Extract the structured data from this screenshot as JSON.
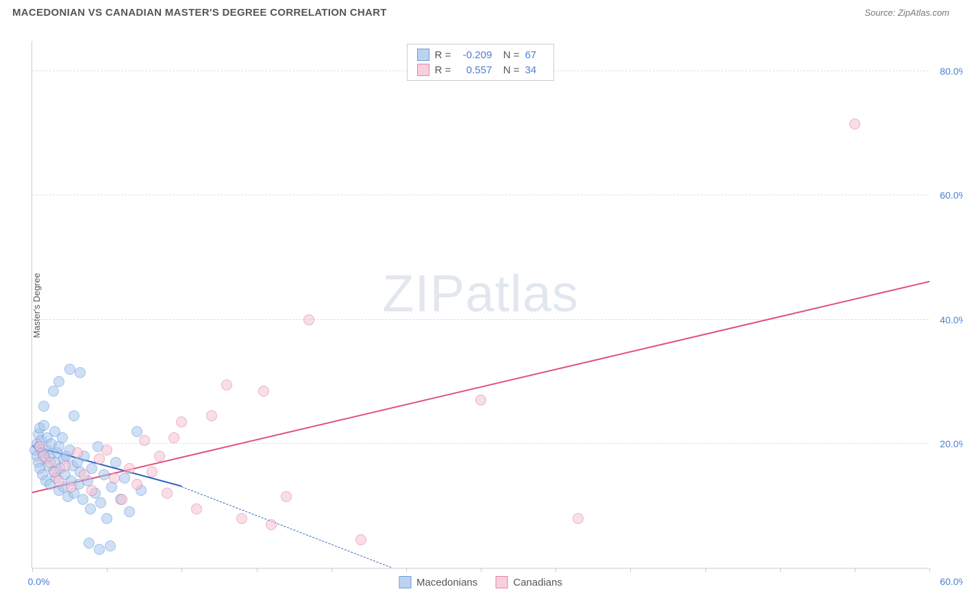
{
  "header": {
    "title": "MACEDONIAN VS CANADIAN MASTER'S DEGREE CORRELATION CHART",
    "source": "Source: ZipAtlas.com"
  },
  "chart": {
    "type": "scatter",
    "background_color": "#ffffff",
    "grid_color": "#dddddd",
    "axis_color": "#cccccc",
    "ylabel": "Master's Degree",
    "ylabel_fontsize": 13,
    "tick_label_color": "#4a7dd4",
    "tick_fontsize": 14,
    "xlim": [
      0,
      60
    ],
    "ylim": [
      0,
      85
    ],
    "xtick_positions": [
      0,
      5,
      10,
      15,
      20,
      25,
      30,
      35,
      40,
      45,
      50,
      55,
      60
    ],
    "xtick_labels": {
      "0": "0.0%",
      "60": "60.0%"
    },
    "ytick_positions": [
      20,
      40,
      60,
      80
    ],
    "ytick_labels": {
      "20": "20.0%",
      "40": "40.0%",
      "60": "60.0%",
      "80": "80.0%"
    },
    "watermark": {
      "text_bold": "ZIP",
      "text_light": "atlas"
    },
    "marker_radius": 8,
    "marker_stroke_width": 1,
    "series": [
      {
        "name": "Macedonians",
        "fill_color": "#a8c6ee",
        "stroke_color": "#5b8fd6",
        "fill_opacity": 0.55,
        "swatch_fill": "#bcd3f0",
        "swatch_stroke": "#6d9ad8",
        "R": "-0.209",
        "N": "67",
        "trend": {
          "x1": 0,
          "y1": 19.5,
          "x2": 10,
          "y2": 13.0,
          "dash_x1": 10,
          "dash_y1": 13.0,
          "dash_x2": 24,
          "dash_y2": 0,
          "color": "#2b62c2",
          "width": 2
        },
        "points": [
          [
            0.2,
            19.0
          ],
          [
            0.3,
            20.0
          ],
          [
            0.3,
            18.0
          ],
          [
            0.4,
            21.5
          ],
          [
            0.4,
            17.0
          ],
          [
            0.45,
            19.5
          ],
          [
            0.5,
            16.0
          ],
          [
            0.5,
            22.5
          ],
          [
            0.6,
            20.5
          ],
          [
            0.7,
            15.0
          ],
          [
            0.7,
            18.5
          ],
          [
            0.8,
            23.0
          ],
          [
            0.9,
            17.5
          ],
          [
            0.9,
            14.0
          ],
          [
            1.0,
            19.0
          ],
          [
            1.0,
            21.0
          ],
          [
            1.1,
            16.5
          ],
          [
            1.2,
            18.0
          ],
          [
            1.2,
            13.5
          ],
          [
            1.3,
            20.0
          ],
          [
            1.4,
            15.5
          ],
          [
            1.5,
            17.0
          ],
          [
            1.5,
            22.0
          ],
          [
            1.6,
            14.5
          ],
          [
            1.7,
            18.5
          ],
          [
            1.8,
            12.5
          ],
          [
            1.8,
            19.5
          ],
          [
            1.9,
            16.0
          ],
          [
            2.0,
            21.0
          ],
          [
            2.1,
            13.0
          ],
          [
            2.1,
            17.5
          ],
          [
            2.2,
            15.0
          ],
          [
            2.3,
            18.0
          ],
          [
            2.4,
            11.5
          ],
          [
            2.5,
            19.0
          ],
          [
            2.6,
            14.0
          ],
          [
            2.7,
            16.5
          ],
          [
            2.8,
            12.0
          ],
          [
            3.0,
            17.0
          ],
          [
            3.1,
            13.5
          ],
          [
            3.2,
            15.5
          ],
          [
            3.4,
            11.0
          ],
          [
            3.5,
            18.0
          ],
          [
            3.7,
            14.0
          ],
          [
            3.9,
            9.5
          ],
          [
            4.0,
            16.0
          ],
          [
            4.2,
            12.0
          ],
          [
            4.4,
            19.5
          ],
          [
            4.6,
            10.5
          ],
          [
            4.8,
            15.0
          ],
          [
            5.0,
            8.0
          ],
          [
            5.3,
            13.0
          ],
          [
            5.6,
            17.0
          ],
          [
            5.9,
            11.0
          ],
          [
            6.2,
            14.5
          ],
          [
            6.5,
            9.0
          ],
          [
            7.0,
            22.0
          ],
          [
            7.3,
            12.5
          ],
          [
            1.4,
            28.5
          ],
          [
            1.8,
            30.0
          ],
          [
            2.5,
            32.0
          ],
          [
            3.2,
            31.5
          ],
          [
            0.8,
            26.0
          ],
          [
            2.8,
            24.5
          ],
          [
            4.5,
            3.0
          ],
          [
            3.8,
            4.0
          ],
          [
            5.2,
            3.5
          ]
        ]
      },
      {
        "name": "Canadians",
        "fill_color": "#f5c4d3",
        "stroke_color": "#e36f98",
        "fill_opacity": 0.55,
        "swatch_fill": "#f7d0dc",
        "swatch_stroke": "#e584a5",
        "R": "0.557",
        "N": "34",
        "trend": {
          "x1": 0,
          "y1": 12.0,
          "x2": 60,
          "y2": 46.0,
          "color": "#e14d82",
          "width": 2
        },
        "points": [
          [
            0.5,
            19.5
          ],
          [
            0.8,
            18.0
          ],
          [
            1.2,
            17.0
          ],
          [
            1.5,
            15.5
          ],
          [
            1.8,
            14.0
          ],
          [
            2.2,
            16.5
          ],
          [
            2.6,
            13.0
          ],
          [
            3.0,
            18.5
          ],
          [
            3.5,
            15.0
          ],
          [
            4.0,
            12.5
          ],
          [
            4.5,
            17.5
          ],
          [
            5.0,
            19.0
          ],
          [
            5.5,
            14.5
          ],
          [
            6.0,
            11.0
          ],
          [
            6.5,
            16.0
          ],
          [
            7.0,
            13.5
          ],
          [
            7.5,
            20.5
          ],
          [
            8.0,
            15.5
          ],
          [
            8.5,
            18.0
          ],
          [
            9.0,
            12.0
          ],
          [
            9.5,
            21.0
          ],
          [
            10.0,
            23.5
          ],
          [
            11.0,
            9.5
          ],
          [
            12.0,
            24.5
          ],
          [
            13.0,
            29.5
          ],
          [
            14.0,
            8.0
          ],
          [
            15.5,
            28.5
          ],
          [
            17.0,
            11.5
          ],
          [
            18.5,
            40.0
          ],
          [
            22.0,
            4.5
          ],
          [
            30.0,
            27.0
          ],
          [
            36.5,
            8.0
          ],
          [
            55.0,
            71.5
          ],
          [
            16.0,
            7.0
          ]
        ]
      }
    ],
    "bottom_legend": [
      {
        "label": "Macedonians",
        "fill": "#bcd3f0",
        "stroke": "#6d9ad8"
      },
      {
        "label": "Canadians",
        "fill": "#f7d0dc",
        "stroke": "#e584a5"
      }
    ]
  }
}
